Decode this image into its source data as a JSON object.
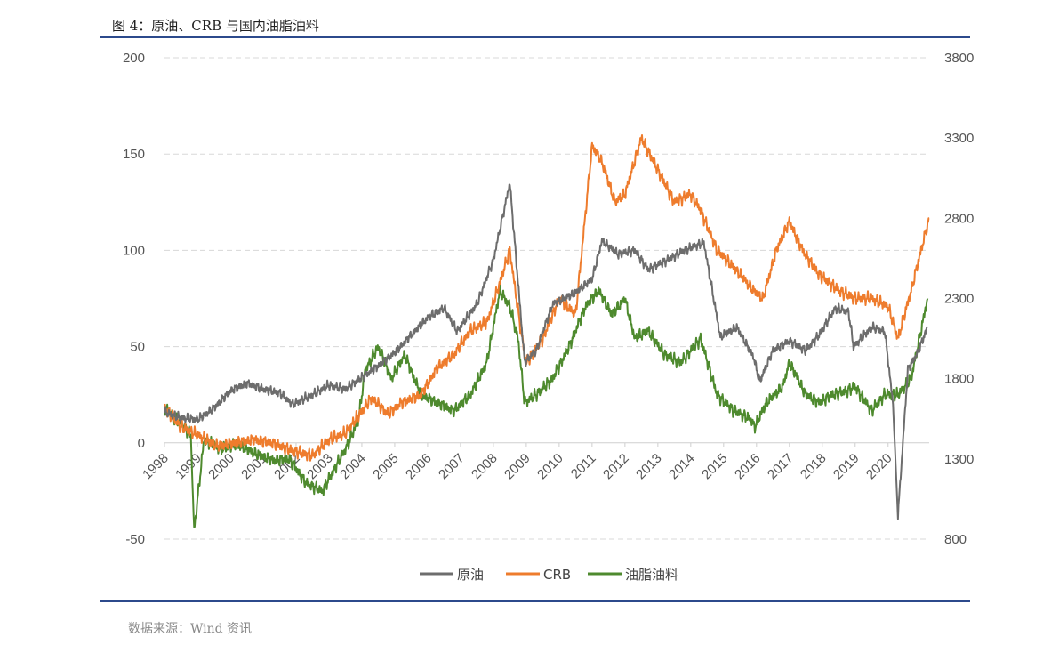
{
  "caption": "图 4：原油、CRB 与国内油脂油料",
  "source": "数据来源：Wind 资讯",
  "chart_data": {
    "type": "line",
    "title": "",
    "y_left": {
      "ticks": [
        "200",
        "150",
        "100",
        "50",
        "0",
        "-50"
      ],
      "range": [
        -50,
        200
      ]
    },
    "y_right": {
      "ticks": [
        "3800",
        "3300",
        "2800",
        "2300",
        "1800",
        "1300",
        "800"
      ],
      "range": [
        800,
        3800
      ]
    },
    "x_ticks": [
      "1998",
      "1999",
      "2000",
      "2001",
      "2002",
      "2003",
      "2004",
      "2005",
      "2006",
      "2007",
      "2008",
      "2009",
      "2010",
      "2011",
      "2012",
      "2013",
      "2014",
      "2015",
      "2016",
      "2017",
      "2018",
      "2019",
      "2020"
    ],
    "x_range": [
      1998.0,
      2021.25
    ],
    "grid": true,
    "legend_position": "bottom",
    "series": [
      {
        "name": "原油",
        "axis": "left",
        "color": "#6d6d6d",
        "x": [
          1998.0,
          1998.5,
          1999.0,
          1999.5,
          2000.0,
          2000.5,
          2001.0,
          2001.5,
          2001.9,
          2002.5,
          2003.0,
          2003.5,
          2004.0,
          2004.5,
          2005.0,
          2005.5,
          2006.0,
          2006.5,
          2006.9,
          2007.5,
          2008.0,
          2008.5,
          2008.95,
          2009.3,
          2009.8,
          2010.5,
          2011.0,
          2011.3,
          2011.8,
          2012.3,
          2012.7,
          2013.3,
          2013.8,
          2014.4,
          2014.9,
          2015.4,
          2015.9,
          2016.1,
          2016.5,
          2017.0,
          2017.5,
          2017.9,
          2018.4,
          2018.8,
          2018.95,
          2019.5,
          2019.9,
          2020.15,
          2020.3,
          2020.6,
          2020.9,
          2021.2
        ],
        "y": [
          16,
          13,
          12,
          18,
          27,
          31,
          28,
          26,
          20,
          25,
          30,
          28,
          34,
          40,
          47,
          56,
          65,
          70,
          58,
          72,
          95,
          135,
          42,
          48,
          72,
          78,
          85,
          105,
          98,
          100,
          90,
          95,
          100,
          104,
          55,
          60,
          45,
          32,
          48,
          53,
          48,
          56,
          70,
          68,
          50,
          60,
          58,
          20,
          -38,
          38,
          47,
          60
        ]
      },
      {
        "name": "CRB",
        "axis": "right",
        "color": "#ee7c2d",
        "x": [
          1998.0,
          1998.5,
          1999.0,
          1999.6,
          2000.2,
          2000.7,
          2001.3,
          2001.9,
          2002.5,
          2003.0,
          2003.5,
          2004.0,
          2004.3,
          2004.8,
          2005.2,
          2005.8,
          2006.3,
          2006.8,
          2007.3,
          2007.8,
          2008.2,
          2008.5,
          2008.8,
          2009.0,
          2009.5,
          2010.0,
          2010.5,
          2011.0,
          2011.3,
          2011.7,
          2012.0,
          2012.5,
          2013.0,
          2013.5,
          2014.0,
          2014.3,
          2014.8,
          2015.5,
          2015.9,
          2016.2,
          2016.6,
          2017.0,
          2017.4,
          2017.9,
          2018.5,
          2019.0,
          2019.5,
          2020.0,
          2020.3,
          2020.7,
          2021.0,
          2021.25
        ],
        "y": [
          1620,
          1500,
          1450,
          1380,
          1400,
          1420,
          1400,
          1350,
          1320,
          1420,
          1460,
          1600,
          1680,
          1580,
          1650,
          1700,
          1870,
          1950,
          2100,
          2150,
          2400,
          2600,
          2150,
          1900,
          2050,
          2300,
          2200,
          3250,
          3150,
          2900,
          2950,
          3300,
          3100,
          2900,
          2950,
          2850,
          2600,
          2450,
          2350,
          2300,
          2600,
          2780,
          2600,
          2450,
          2350,
          2300,
          2300,
          2250,
          2050,
          2350,
          2600,
          2800
        ]
      },
      {
        "name": "油脂油料",
        "axis": "right",
        "color": "#4e8a2e",
        "x": [
          1998.0,
          1998.5,
          1998.8,
          1998.9,
          1999.2,
          1999.7,
          2000.2,
          2000.8,
          2001.3,
          2001.8,
          2002.3,
          2002.8,
          2003.2,
          2003.6,
          2003.9,
          2004.1,
          2004.5,
          2004.9,
          2005.3,
          2005.8,
          2006.3,
          2006.8,
          2007.3,
          2007.8,
          2008.2,
          2008.5,
          2008.75,
          2008.95,
          2009.3,
          2009.8,
          2010.3,
          2010.8,
          2011.2,
          2011.6,
          2012.0,
          2012.3,
          2012.7,
          2013.2,
          2013.7,
          2014.3,
          2014.8,
          2015.3,
          2015.8,
          2015.95,
          2016.3,
          2016.8,
          2017.0,
          2017.5,
          2017.9,
          2018.3,
          2018.7,
          2019.0,
          2019.5,
          2019.9,
          2020.3,
          2020.7,
          2021.0,
          2021.2
        ],
        "y": [
          1620,
          1520,
          1450,
          850,
          1420,
          1360,
          1390,
          1330,
          1290,
          1300,
          1150,
          1100,
          1250,
          1400,
          1550,
          1850,
          2000,
          1800,
          1950,
          1700,
          1650,
          1600,
          1700,
          1900,
          2350,
          2250,
          2050,
          1650,
          1700,
          1800,
          2000,
          2250,
          2350,
          2200,
          2300,
          2050,
          2100,
          1950,
          1900,
          2050,
          1700,
          1600,
          1550,
          1500,
          1650,
          1750,
          1900,
          1700,
          1650,
          1700,
          1720,
          1750,
          1600,
          1700,
          1700,
          1800,
          2100,
          2300
        ]
      }
    ]
  }
}
